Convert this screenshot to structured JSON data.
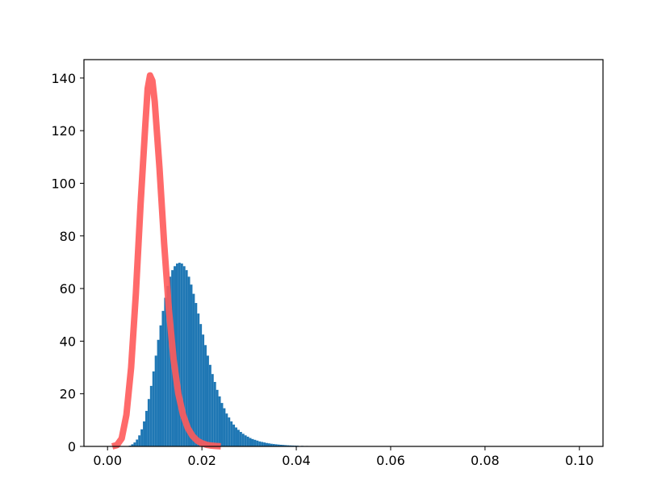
{
  "chart_data": {
    "type": "histogram+line",
    "title": "",
    "xlabel": "",
    "ylabel": "",
    "xlim": [
      -0.005,
      0.105
    ],
    "ylim": [
      0,
      147
    ],
    "x_ticks": [
      0.0,
      0.02,
      0.04,
      0.06,
      0.08,
      0.1
    ],
    "x_tick_labels": [
      "0.00",
      "0.02",
      "0.04",
      "0.06",
      "0.08",
      "0.10"
    ],
    "y_ticks": [
      0,
      20,
      40,
      60,
      80,
      100,
      120,
      140
    ],
    "y_tick_labels": [
      "0",
      "20",
      "40",
      "60",
      "80",
      "100",
      "120",
      "140"
    ],
    "grid": false,
    "legend": "none",
    "series": [
      {
        "kind": "histogram",
        "color": "#1f77b4",
        "bin_width": 0.0005,
        "bins": [
          [
            0.004,
            0.1
          ],
          [
            0.0045,
            0.3
          ],
          [
            0.005,
            0.8
          ],
          [
            0.0055,
            1.5
          ],
          [
            0.006,
            2.6
          ],
          [
            0.0065,
            4.2
          ],
          [
            0.007,
            6.5
          ],
          [
            0.0075,
            9.5
          ],
          [
            0.008,
            13.5
          ],
          [
            0.0085,
            18.0
          ],
          [
            0.009,
            23.0
          ],
          [
            0.0095,
            28.5
          ],
          [
            0.01,
            34.5
          ],
          [
            0.0105,
            40.5
          ],
          [
            0.011,
            46.0
          ],
          [
            0.0115,
            51.5
          ],
          [
            0.012,
            56.5
          ],
          [
            0.0125,
            61.0
          ],
          [
            0.013,
            64.5
          ],
          [
            0.0135,
            67.0
          ],
          [
            0.014,
            68.5
          ],
          [
            0.0145,
            69.5
          ],
          [
            0.015,
            69.8
          ],
          [
            0.0155,
            69.5
          ],
          [
            0.016,
            68.5
          ],
          [
            0.0165,
            67.0
          ],
          [
            0.017,
            64.5
          ],
          [
            0.0175,
            61.5
          ],
          [
            0.018,
            58.0
          ],
          [
            0.0185,
            54.5
          ],
          [
            0.019,
            50.5
          ],
          [
            0.0195,
            46.5
          ],
          [
            0.02,
            42.5
          ],
          [
            0.0205,
            38.5
          ],
          [
            0.021,
            34.5
          ],
          [
            0.0215,
            31.0
          ],
          [
            0.022,
            27.5
          ],
          [
            0.0225,
            24.5
          ],
          [
            0.023,
            21.5
          ],
          [
            0.0235,
            19.0
          ],
          [
            0.024,
            16.5
          ],
          [
            0.0245,
            14.5
          ],
          [
            0.025,
            12.5
          ],
          [
            0.0255,
            11.0
          ],
          [
            0.026,
            9.5
          ],
          [
            0.0265,
            8.3
          ],
          [
            0.027,
            7.2
          ],
          [
            0.0275,
            6.3
          ],
          [
            0.028,
            5.5
          ],
          [
            0.0285,
            4.8
          ],
          [
            0.029,
            4.2
          ],
          [
            0.0295,
            3.7
          ],
          [
            0.03,
            3.2
          ],
          [
            0.0305,
            2.8
          ],
          [
            0.031,
            2.5
          ],
          [
            0.0315,
            2.2
          ],
          [
            0.032,
            1.9
          ],
          [
            0.0325,
            1.7
          ],
          [
            0.033,
            1.5
          ],
          [
            0.0335,
            1.3
          ],
          [
            0.034,
            1.15
          ],
          [
            0.0345,
            1.0
          ],
          [
            0.035,
            0.9
          ],
          [
            0.0355,
            0.8
          ],
          [
            0.036,
            0.7
          ],
          [
            0.0365,
            0.62
          ],
          [
            0.037,
            0.55
          ],
          [
            0.0375,
            0.48
          ],
          [
            0.038,
            0.42
          ],
          [
            0.0385,
            0.37
          ],
          [
            0.039,
            0.33
          ],
          [
            0.0395,
            0.29
          ],
          [
            0.04,
            0.26
          ],
          [
            0.041,
            0.21
          ],
          [
            0.042,
            0.17
          ],
          [
            0.043,
            0.14
          ],
          [
            0.044,
            0.11
          ],
          [
            0.045,
            0.09
          ],
          [
            0.046,
            0.07
          ],
          [
            0.048,
            0.05
          ],
          [
            0.05,
            0.03
          ],
          [
            0.052,
            0.02
          ],
          [
            0.055,
            0.01
          ],
          [
            0.06,
            0.005
          ]
        ]
      },
      {
        "kind": "line",
        "color": "#ff5a5a",
        "opacity": 0.9,
        "points": [
          [
            0.001,
            0.0
          ],
          [
            0.002,
            0.5
          ],
          [
            0.003,
            3.0
          ],
          [
            0.004,
            12.0
          ],
          [
            0.005,
            30.0
          ],
          [
            0.006,
            58.0
          ],
          [
            0.007,
            92.0
          ],
          [
            0.008,
            122.0
          ],
          [
            0.0085,
            136.0
          ],
          [
            0.009,
            141.0
          ],
          [
            0.0095,
            139.0
          ],
          [
            0.01,
            131.0
          ],
          [
            0.011,
            106.0
          ],
          [
            0.012,
            77.0
          ],
          [
            0.013,
            52.0
          ],
          [
            0.014,
            33.0
          ],
          [
            0.015,
            20.0
          ],
          [
            0.016,
            12.0
          ],
          [
            0.017,
            7.0
          ],
          [
            0.018,
            4.0
          ],
          [
            0.019,
            2.2
          ],
          [
            0.02,
            1.2
          ],
          [
            0.021,
            0.6
          ],
          [
            0.022,
            0.3
          ],
          [
            0.023,
            0.15
          ],
          [
            0.024,
            0.05
          ]
        ]
      }
    ]
  }
}
